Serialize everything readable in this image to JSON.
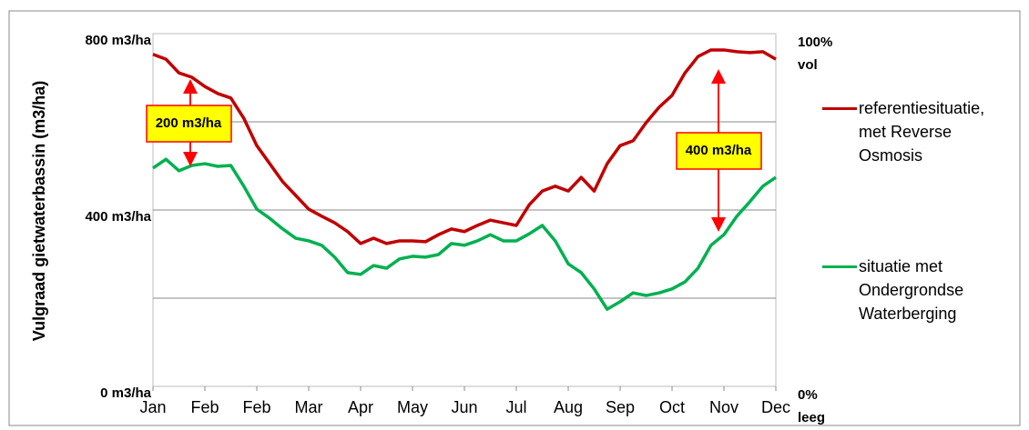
{
  "chart_data": {
    "type": "line",
    "y_label": "Vulgraad gietwaterbassin (m3/ha)",
    "x": [
      0,
      0.25,
      0.5,
      0.75,
      1,
      1.25,
      1.5,
      1.75,
      2,
      2.25,
      2.5,
      2.75,
      3,
      3.25,
      3.5,
      3.75,
      4,
      4.25,
      4.5,
      4.75,
      5,
      5.25,
      5.5,
      5.75,
      6,
      6.25,
      6.5,
      6.75,
      7,
      7.25,
      7.5,
      7.75,
      8,
      8.25,
      8.5,
      8.75,
      9,
      9.25,
      9.5,
      9.75,
      10,
      10.25,
      10.5,
      10.75,
      11,
      11.25,
      11.5,
      11.75,
      12
    ],
    "xlim": [
      0,
      12
    ],
    "xticks": [
      {
        "value": 0,
        "label": "Jan"
      },
      {
        "value": 1,
        "label": "Feb"
      },
      {
        "value": 2,
        "label": "Feb"
      },
      {
        "value": 3,
        "label": "Mar"
      },
      {
        "value": 4,
        "label": "Apr"
      },
      {
        "value": 5,
        "label": "May"
      },
      {
        "value": 6,
        "label": "Jun"
      },
      {
        "value": 7,
        "label": "Jul"
      },
      {
        "value": 8,
        "label": "Aug"
      },
      {
        "value": 9,
        "label": "Sep"
      },
      {
        "value": 10,
        "label": "Oct"
      },
      {
        "value": 11,
        "label": "Nov"
      },
      {
        "value": 12,
        "label": "Dec"
      }
    ],
    "ylim": [
      0,
      800
    ],
    "yticks": [
      {
        "value": 0,
        "label": "0 m3/ha"
      },
      {
        "value": 400,
        "label": "400 m3/ha"
      },
      {
        "value": 800,
        "label": "800 m3/ha"
      }
    ],
    "grid_lines": [
      200,
      400,
      600
    ],
    "y2lim": [
      0,
      100
    ],
    "y2ticks": [
      {
        "value": 0,
        "label": "0%"
      },
      {
        "value": 100,
        "label": "100%"
      }
    ],
    "y2_notes": [
      "leeg",
      "vol"
    ],
    "series": [
      {
        "name": "referentiesituatie, met Reverse Osmosis",
        "color": "#c00000",
        "values": [
          753,
          742,
          711,
          701,
          680,
          664,
          654,
          608,
          546,
          505,
          464,
          433,
          402,
          386,
          371,
          351,
          324,
          336,
          324,
          330,
          330,
          328,
          344,
          357,
          351,
          365,
          377,
          371,
          365,
          412,
          443,
          454,
          443,
          474,
          443,
          505,
          546,
          557,
          598,
          633,
          660,
          711,
          748,
          763,
          763,
          759,
          757,
          759,
          742
        ]
      },
      {
        "name": "situatie met Ondergrondse Waterberging",
        "color": "#00b050",
        "values": [
          495,
          515,
          489,
          501,
          505,
          499,
          501,
          454,
          402,
          381,
          357,
          336,
          330,
          320,
          293,
          258,
          254,
          274,
          268,
          289,
          295,
          293,
          299,
          324,
          320,
          330,
          344,
          330,
          330,
          346,
          365,
          330,
          278,
          258,
          221,
          175,
          192,
          212,
          206,
          212,
          221,
          237,
          268,
          320,
          344,
          386,
          419,
          454,
          474
        ]
      }
    ],
    "annotations": [
      "200 m3/ha",
      "400 m3/ha"
    ]
  }
}
